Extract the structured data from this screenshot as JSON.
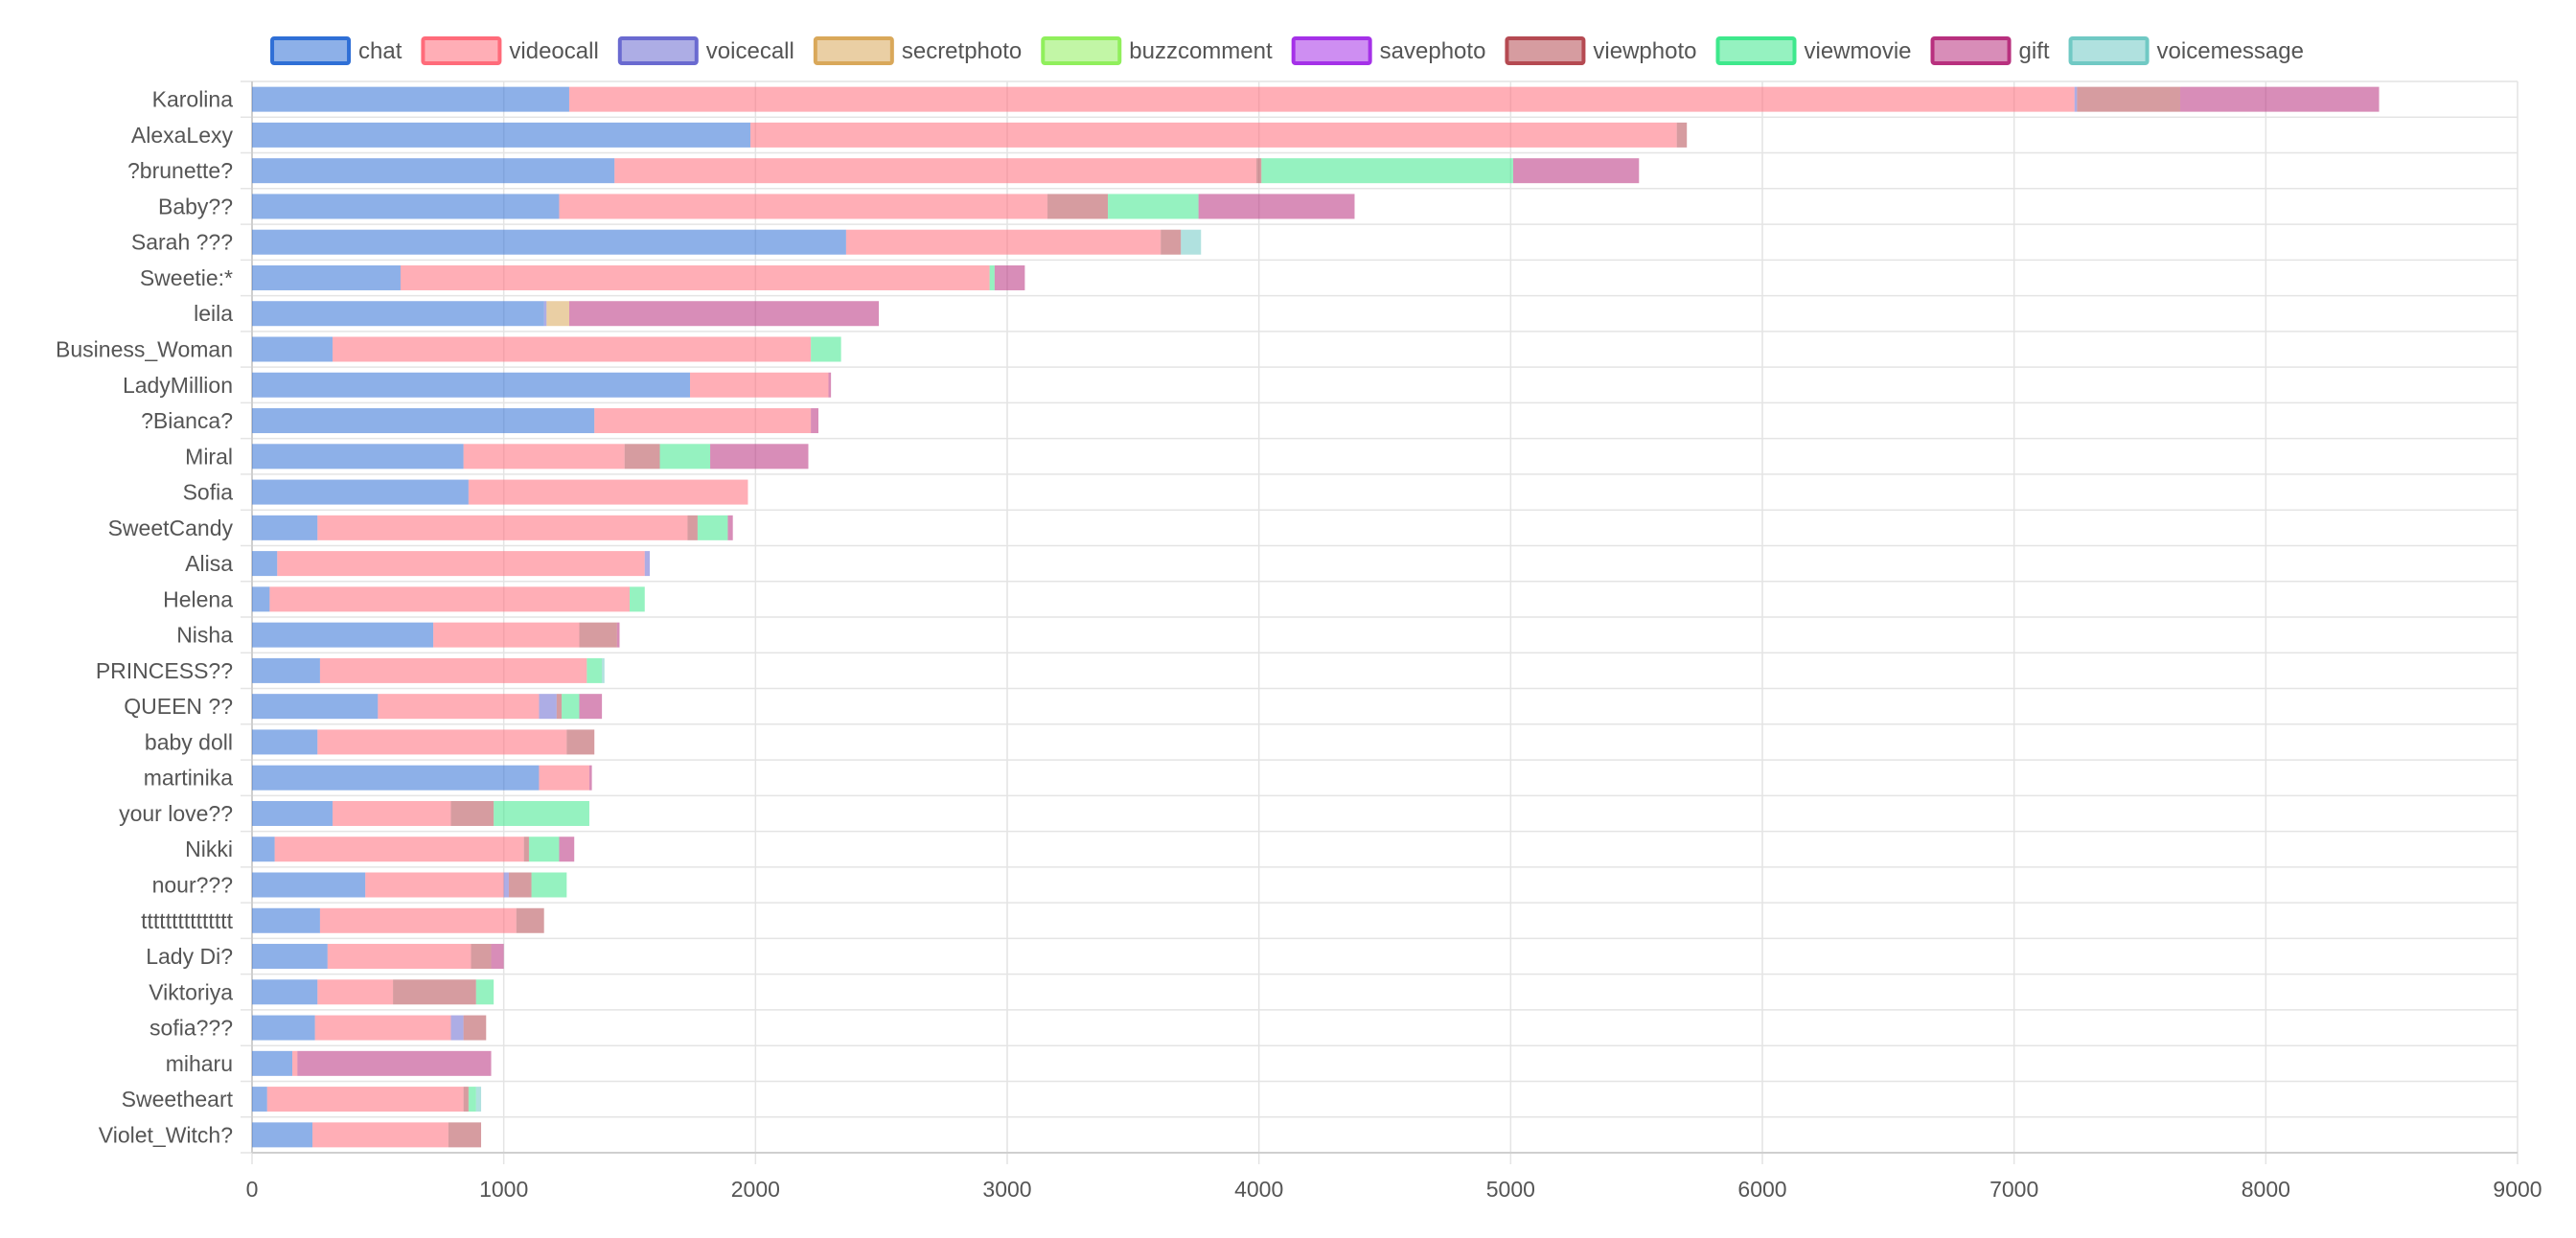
{
  "chart_data": {
    "type": "bar",
    "orientation": "horizontal",
    "stacked": true,
    "title": "",
    "xlabel": "",
    "ylabel": "",
    "xlim": [
      0,
      9000
    ],
    "xticks": [
      0,
      1000,
      2000,
      3000,
      4000,
      5000,
      6000,
      7000,
      8000,
      9000
    ],
    "grid": true,
    "legend_position": "top",
    "categories": [
      "Karolina",
      "AlexaLexy",
      "?brunette?",
      "Baby??",
      "Sarah ???",
      "Sweetie:*",
      "leila",
      "Business_Woman",
      "LadyMillion",
      "?Bianca?",
      "Miral",
      "Sofia",
      "SweetCandy",
      "Alisa",
      "Helena",
      "Nisha",
      "PRINCESS??",
      "QUEEN ??",
      "baby doll",
      "martinika",
      "your love??",
      "Nikki",
      "nour???",
      "ttttttttttttttt",
      "Lady Di?",
      "Viktoriya",
      "sofia???",
      "miharu",
      "Sweetheart",
      "Violet_Witch?"
    ],
    "series": [
      {
        "name": "chat",
        "color": "#2f6fd6",
        "values": [
          1260,
          1980,
          1440,
          1220,
          2360,
          590,
          1160,
          320,
          1740,
          1360,
          840,
          860,
          260,
          100,
          70,
          720,
          270,
          500,
          260,
          1140,
          320,
          90,
          450,
          270,
          300,
          260,
          250,
          160,
          60,
          240
        ]
      },
      {
        "name": "videocall",
        "color": "#ff6b7a",
        "values": [
          5980,
          3680,
          2550,
          1940,
          1250,
          2340,
          0,
          1900,
          550,
          860,
          640,
          1110,
          1470,
          1460,
          1430,
          580,
          1060,
          640,
          990,
          200,
          470,
          990,
          550,
          780,
          570,
          300,
          540,
          20,
          780,
          540
        ]
      },
      {
        "name": "voicecall",
        "color": "#6a6ad0",
        "values": [
          10,
          0,
          0,
          0,
          0,
          0,
          10,
          0,
          0,
          0,
          0,
          0,
          0,
          20,
          0,
          0,
          0,
          70,
          0,
          0,
          0,
          0,
          20,
          0,
          0,
          0,
          50,
          0,
          0,
          0
        ]
      },
      {
        "name": "secretphoto",
        "color": "#d9a85a",
        "values": [
          0,
          0,
          0,
          0,
          0,
          0,
          90,
          0,
          0,
          0,
          0,
          0,
          0,
          0,
          0,
          0,
          0,
          0,
          0,
          0,
          0,
          0,
          0,
          0,
          0,
          0,
          0,
          0,
          0,
          0
        ]
      },
      {
        "name": "buzzcomment",
        "color": "#90ef5c",
        "values": [
          0,
          0,
          0,
          0,
          0,
          0,
          0,
          0,
          0,
          0,
          0,
          0,
          0,
          0,
          0,
          0,
          0,
          0,
          0,
          0,
          0,
          0,
          0,
          0,
          0,
          0,
          0,
          0,
          0,
          0
        ]
      },
      {
        "name": "savephoto",
        "color": "#a531e8",
        "values": [
          0,
          0,
          0,
          0,
          0,
          0,
          0,
          0,
          0,
          0,
          0,
          0,
          0,
          0,
          0,
          0,
          0,
          0,
          0,
          0,
          0,
          0,
          0,
          0,
          0,
          0,
          0,
          0,
          0,
          0
        ]
      },
      {
        "name": "viewphoto",
        "color": "#b54a52",
        "values": [
          410,
          40,
          20,
          240,
          80,
          0,
          0,
          0,
          0,
          0,
          140,
          0,
          40,
          0,
          0,
          150,
          0,
          20,
          110,
          0,
          170,
          20,
          90,
          110,
          80,
          330,
          90,
          0,
          20,
          130
        ]
      },
      {
        "name": "viewmovie",
        "color": "#3ee88c",
        "values": [
          0,
          0,
          1000,
          360,
          0,
          20,
          0,
          120,
          0,
          0,
          200,
          0,
          120,
          0,
          60,
          0,
          60,
          70,
          0,
          0,
          380,
          120,
          140,
          0,
          0,
          70,
          0,
          0,
          30,
          0
        ]
      },
      {
        "name": "gift",
        "color": "#b8307e",
        "values": [
          790,
          0,
          500,
          620,
          0,
          120,
          1230,
          0,
          10,
          30,
          390,
          0,
          20,
          0,
          0,
          10,
          0,
          90,
          0,
          10,
          0,
          60,
          0,
          0,
          50,
          0,
          0,
          770,
          0,
          0
        ]
      },
      {
        "name": "voicemessage",
        "color": "#70c9c4",
        "values": [
          0,
          0,
          0,
          0,
          80,
          0,
          0,
          0,
          0,
          0,
          0,
          0,
          0,
          0,
          0,
          0,
          10,
          0,
          0,
          0,
          0,
          0,
          0,
          0,
          0,
          0,
          0,
          0,
          20,
          0
        ]
      }
    ]
  }
}
